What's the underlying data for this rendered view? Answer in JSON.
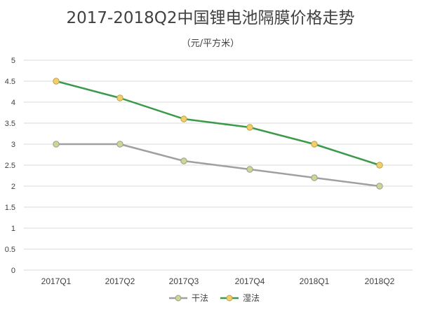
{
  "chart_data": {
    "type": "line",
    "title": "2017-2018Q2中国锂电池隔膜价格走势",
    "subtitle": "（元/平方米）",
    "categories": [
      "2017Q1",
      "2017Q2",
      "2017Q3",
      "2017Q4",
      "2018Q1",
      "2018Q2"
    ],
    "ylim": [
      0,
      5
    ],
    "yticks": [
      "0",
      "0.5",
      "1",
      "1.5",
      "2",
      "2.5",
      "3",
      "3.5",
      "4",
      "4.5",
      "5"
    ],
    "grid": true,
    "legend_position": "bottom",
    "series": [
      {
        "name": "干法",
        "values": [
          3.0,
          3.0,
          2.6,
          2.4,
          2.2,
          2.0
        ],
        "line_color": "#a0a0a0",
        "marker_fill": "#c9d98e",
        "marker_stroke": "#9a9a9a"
      },
      {
        "name": "湿法",
        "values": [
          4.5,
          4.1,
          3.6,
          3.4,
          3.0,
          2.5
        ],
        "line_color": "#3a9a4a",
        "marker_fill": "#f2cf6b",
        "marker_stroke": "#b8a24a"
      }
    ]
  },
  "colors": {
    "grid": "#d9d9d9",
    "text": "#404040"
  }
}
